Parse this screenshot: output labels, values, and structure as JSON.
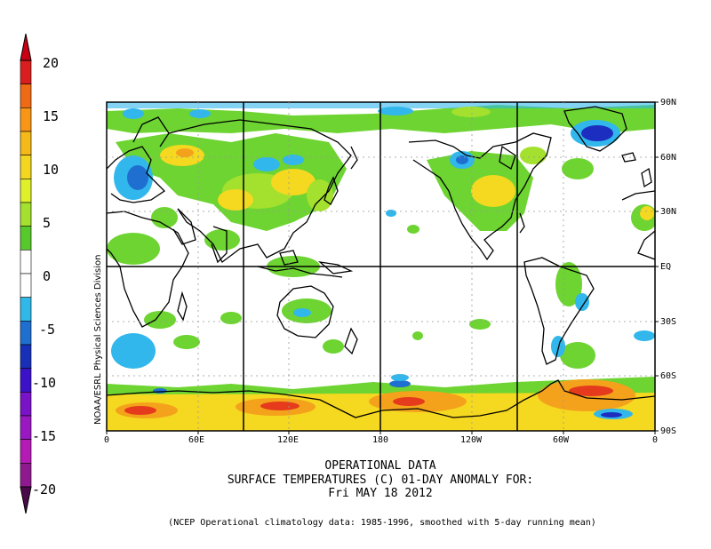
{
  "colorbar": {
    "labels": [
      "20",
      "15",
      "10",
      "5",
      "0",
      "-5",
      "-10",
      "-15",
      "-20"
    ],
    "colors": [
      "#7a0b14",
      "#d81e1e",
      "#ef6a14",
      "#f99618",
      "#f6b91a",
      "#f3d620",
      "#dff02a",
      "#a4e02e",
      "#57c92c",
      "#ffffff",
      "#ffffff",
      "#2fb8e8",
      "#1f6fd0",
      "#1830b8",
      "#3c12c8",
      "#7a12c8",
      "#9a18c2",
      "#b41ab4",
      "#8f1a8f",
      "#5a0d5a"
    ],
    "top_color": "#c80014",
    "bottom_color": "#4a0a4a"
  },
  "map": {
    "lon_labels": [
      "0",
      "60E",
      "120E",
      "180",
      "120W",
      "60W",
      "0"
    ],
    "lat_labels": [
      "90N",
      "60N",
      "30N",
      "EQ",
      "30S",
      "60S",
      "90S"
    ],
    "credit": "NOAA/ESRL Physical Sciences Division",
    "colors": {
      "green": "#6dd431",
      "lime": "#a4e02e",
      "yellow": "#f5d820",
      "orange": "#f4a21c",
      "red": "#e53a1c",
      "cyan": "#31b7ec",
      "blue": "#1f6fd0",
      "navy": "#1c2ec0",
      "coast": "#000000"
    }
  },
  "title": {
    "line1": "OPERATIONAL DATA",
    "line2": "SURFACE TEMPERATURES (C)   01-DAY ANOMALY FOR:",
    "line3": "Fri MAY 18 2012"
  },
  "footnote": "(NCEP Operational climatology data: 1985-1996, smoothed with 5-day running mean)"
}
